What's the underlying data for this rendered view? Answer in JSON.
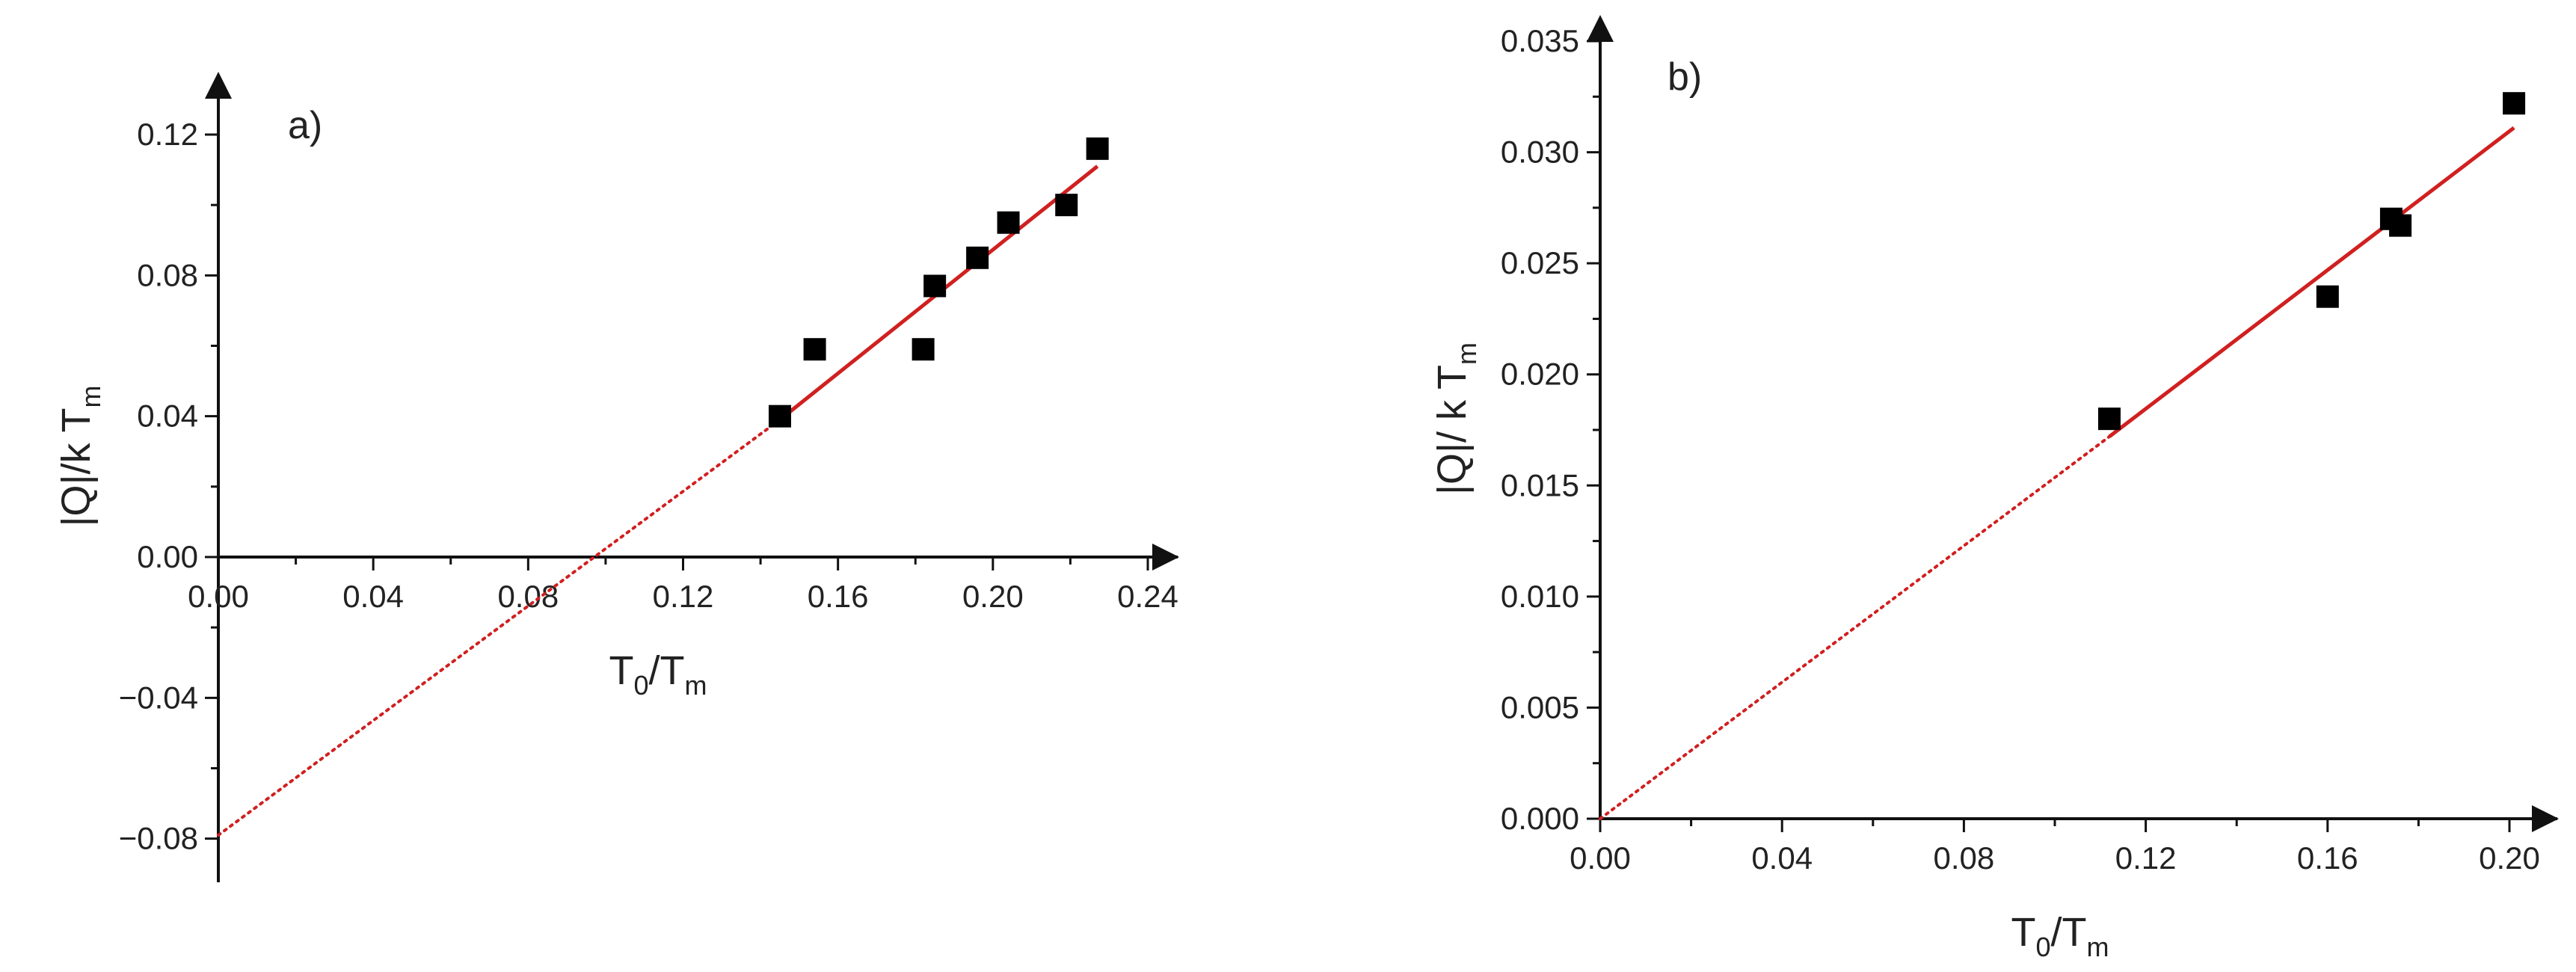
{
  "chart_data": [
    {
      "type": "scatter",
      "panel_label": "a)",
      "xlabel": {
        "base": "T",
        "sub1": "0",
        "mid": "/T",
        "sub2": "m"
      },
      "ylabel": {
        "base": "|Q|/k T",
        "sub": "m"
      },
      "xlim": [
        0.0,
        0.245
      ],
      "ylim": [
        -0.09,
        0.128
      ],
      "xticks": [
        "0.00",
        "0.04",
        "0.08",
        "0.12",
        "0.16",
        "0.20",
        "0.24"
      ],
      "yticks": [
        "−0.08",
        "−0.04",
        "0.00",
        "0.04",
        "0.08",
        "0.12"
      ],
      "grid": false,
      "points": [
        {
          "x": 0.145,
          "y": 0.04
        },
        {
          "x": 0.154,
          "y": 0.059
        },
        {
          "x": 0.182,
          "y": 0.059
        },
        {
          "x": 0.185,
          "y": 0.077
        },
        {
          "x": 0.196,
          "y": 0.085
        },
        {
          "x": 0.204,
          "y": 0.095
        },
        {
          "x": 0.219,
          "y": 0.1
        },
        {
          "x": 0.227,
          "y": 0.116
        }
      ],
      "fit_line": {
        "x": [
          0.145,
          0.227
        ],
        "y": [
          0.039,
          0.111
        ]
      },
      "extrapolation": {
        "x": [
          0.0,
          0.145
        ],
        "y": [
          -0.079,
          0.039
        ]
      },
      "colors": {
        "points": "#000000",
        "fit": "#d02020"
      }
    },
    {
      "type": "scatter",
      "panel_label": "b)",
      "xlabel": {
        "base": "T",
        "sub1": "0",
        "mid": "/T",
        "sub2": "m"
      },
      "ylabel": {
        "base": "|Q|/ k T",
        "sub": "m"
      },
      "xlim": [
        0.0,
        0.205
      ],
      "ylim": [
        0.0,
        0.035
      ],
      "xticks": [
        "0.00",
        "0.04",
        "0.08",
        "0.12",
        "0.16",
        "0.20"
      ],
      "yticks": [
        "0.000",
        "0.005",
        "0.010",
        "0.015",
        "0.020",
        "0.025",
        "0.030",
        "0.035"
      ],
      "grid": false,
      "points": [
        {
          "x": 0.112,
          "y": 0.018
        },
        {
          "x": 0.16,
          "y": 0.0235
        },
        {
          "x": 0.174,
          "y": 0.027
        },
        {
          "x": 0.176,
          "y": 0.0267
        },
        {
          "x": 0.201,
          "y": 0.0322
        }
      ],
      "fit_line": {
        "x": [
          0.112,
          0.201
        ],
        "y": [
          0.0172,
          0.0311
        ]
      },
      "extrapolation": {
        "x": [
          0.0,
          0.112
        ],
        "y": [
          0.0,
          0.0172
        ]
      },
      "colors": {
        "points": "#000000",
        "fit": "#d02020"
      }
    }
  ]
}
